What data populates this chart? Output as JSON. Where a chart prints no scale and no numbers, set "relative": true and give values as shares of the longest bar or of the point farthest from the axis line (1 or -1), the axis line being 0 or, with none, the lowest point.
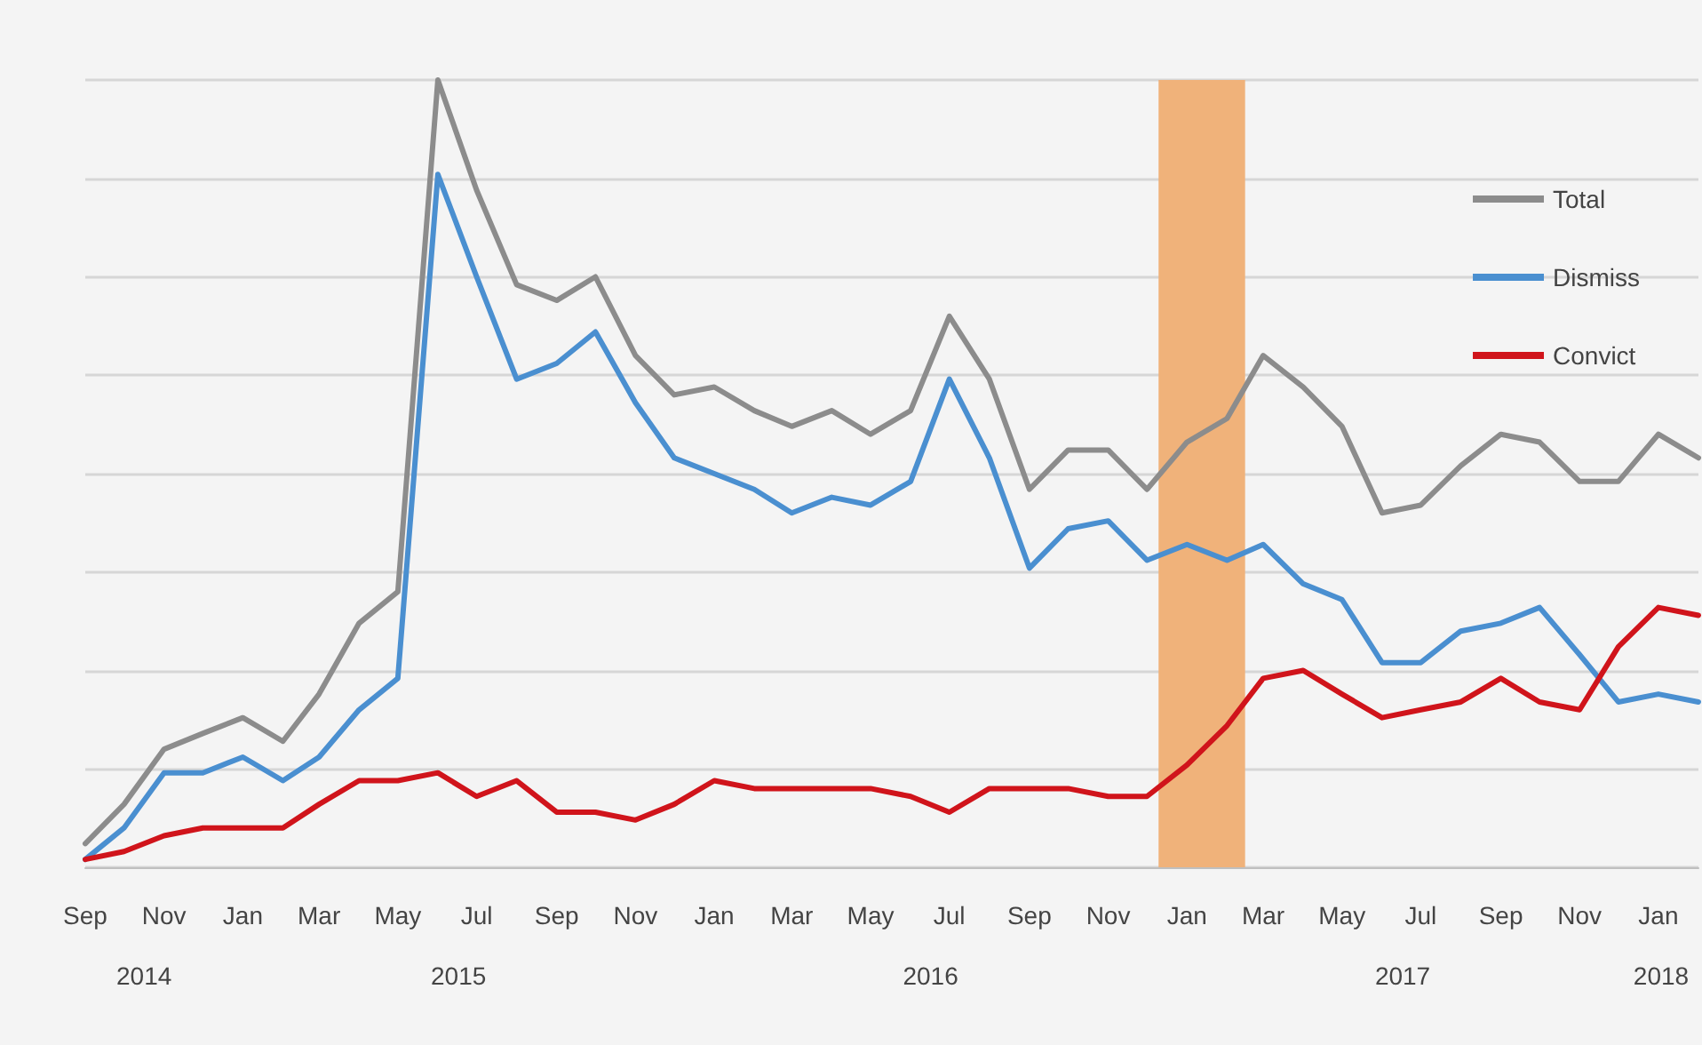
{
  "chart_data": {
    "type": "line",
    "relative": true,
    "x": [
      "2014-09",
      "2014-10",
      "2014-11",
      "2014-12",
      "2015-01",
      "2015-02",
      "2015-03",
      "2015-04",
      "2015-05",
      "2015-06",
      "2015-07",
      "2015-08",
      "2015-09",
      "2015-10",
      "2015-11",
      "2015-12",
      "2016-01",
      "2016-02",
      "2016-03",
      "2016-04",
      "2016-05",
      "2016-06",
      "2016-07",
      "2016-08",
      "2016-09",
      "2016-10",
      "2016-11",
      "2016-12",
      "2017-01",
      "2017-02",
      "2017-03",
      "2017-04",
      "2017-05",
      "2017-06",
      "2017-07",
      "2017-08",
      "2017-09",
      "2017-10",
      "2017-11",
      "2017-12",
      "2018-01",
      "2018-02"
    ],
    "xlim": [
      "2014-09",
      "2018-02"
    ],
    "xticks": [
      {
        "value": "2014-09",
        "label": "Sep"
      },
      {
        "value": "2014-11",
        "label": "Nov"
      },
      {
        "value": "2015-01",
        "label": "Jan"
      },
      {
        "value": "2015-03",
        "label": "Mar"
      },
      {
        "value": "2015-05",
        "label": "May"
      },
      {
        "value": "2015-07",
        "label": "Jul"
      },
      {
        "value": "2015-09",
        "label": "Sep"
      },
      {
        "value": "2015-11",
        "label": "Nov"
      },
      {
        "value": "2016-01",
        "label": "Jan"
      },
      {
        "value": "2016-03",
        "label": "Mar"
      },
      {
        "value": "2016-05",
        "label": "May"
      },
      {
        "value": "2016-07",
        "label": "Jul"
      },
      {
        "value": "2016-09",
        "label": "Sep"
      },
      {
        "value": "2016-11",
        "label": "Nov"
      },
      {
        "value": "2017-01",
        "label": "Jan"
      },
      {
        "value": "2017-03",
        "label": "Mar"
      },
      {
        "value": "2017-05",
        "label": "May"
      },
      {
        "value": "2017-07",
        "label": "Jul"
      },
      {
        "value": "2017-09",
        "label": "Sep"
      },
      {
        "value": "2017-11",
        "label": "Nov"
      },
      {
        "value": "2018-01",
        "label": "Jan"
      }
    ],
    "series": [
      {
        "name": "Total",
        "color": "#8c8c8c",
        "values": [
          0.03,
          0.08,
          0.15,
          0.17,
          0.19,
          0.16,
          0.22,
          0.31,
          0.35,
          1,
          0.86,
          0.74,
          0.72,
          0.75,
          0.65,
          0.6,
          0.61,
          0.58,
          0.56,
          0.58,
          0.55,
          0.58,
          0.7,
          0.62,
          0.48,
          0.53,
          0.53,
          0.48,
          0.54,
          0.57,
          0.65,
          0.61,
          0.56,
          0.45,
          0.46,
          0.51,
          0.55,
          0.54,
          0.49,
          0.49,
          0.55,
          0.52
        ]
      },
      {
        "name": "Dismiss",
        "color": "#4a8fd0",
        "values": [
          0.01,
          0.05,
          0.12,
          0.12,
          0.14,
          0.11,
          0.14,
          0.2,
          0.24,
          0.88,
          0.75,
          0.62,
          0.64,
          0.68,
          0.59,
          0.52,
          0.5,
          0.48,
          0.45,
          0.47,
          0.46,
          0.49,
          0.62,
          0.52,
          0.38,
          0.43,
          0.44,
          0.39,
          0.41,
          0.39,
          0.41,
          0.36,
          0.34,
          0.26,
          0.26,
          0.3,
          0.31,
          0.33,
          0.27,
          0.21,
          0.22,
          0.21
        ]
      },
      {
        "name": "Convict",
        "color": "#d0141b",
        "values": [
          0.01,
          0.02,
          0.04,
          0.05,
          0.05,
          0.05,
          0.08,
          0.11,
          0.11,
          0.12,
          0.09,
          0.11,
          0.07,
          0.07,
          0.06,
          0.08,
          0.11,
          0.1,
          0.1,
          0.1,
          0.1,
          0.09,
          0.07,
          0.1,
          0.1,
          0.1,
          0.09,
          0.09,
          0.13,
          0.18,
          0.24,
          0.25,
          0.22,
          0.19,
          0.2,
          0.21,
          0.24,
          0.21,
          0.2,
          0.28,
          0.33,
          0.32
        ]
      }
    ],
    "bands": [
      {
        "axis": "x",
        "from": "2016-12-10",
        "to": "2017-02-15",
        "color": "#f0b27a"
      }
    ],
    "annotations": [
      "2014",
      "2015",
      "2016",
      "2017",
      "2018"
    ],
    "grid": "y",
    "legend": "top right",
    "marker": "none",
    "line_style": "solid"
  }
}
